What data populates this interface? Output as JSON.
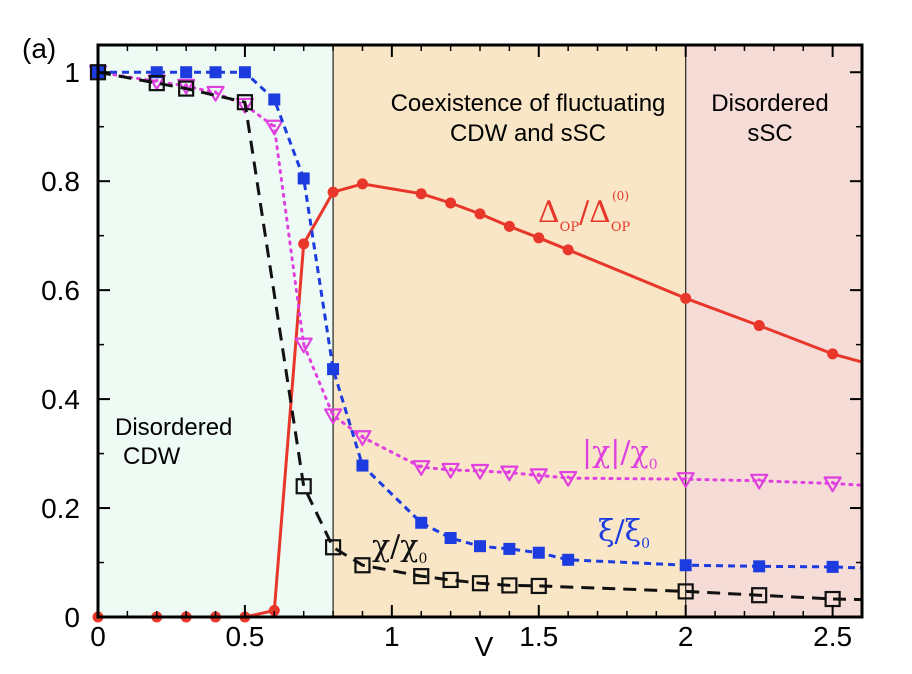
{
  "chart_data": {
    "type": "line",
    "panel_label": "(a)",
    "xlabel": "V",
    "ylabel": "",
    "xlim": [
      0,
      2.6
    ],
    "ylim": [
      0,
      1.05
    ],
    "x_ticks": [
      0,
      0.5,
      1,
      1.5,
      2,
      2.5
    ],
    "x_tick_labels": [
      "0",
      "0.5",
      "1",
      "1.5",
      "2",
      "2.5"
    ],
    "y_ticks": [
      0,
      0.2,
      0.4,
      0.6,
      0.8,
      1
    ],
    "y_tick_labels": [
      "0",
      "0.2",
      "0.4",
      "0.6",
      "0.8",
      "1"
    ],
    "regions": [
      {
        "x0": 0,
        "x1": 0.8,
        "color": "#eefaf4",
        "label_lines": [
          "Disordered",
          "CDW"
        ]
      },
      {
        "x0": 0.8,
        "x1": 2.0,
        "color": "#f8e6c6",
        "label_lines": [
          "Coexistence of fluctuating",
          "CDW and sSC"
        ]
      },
      {
        "x0": 2.0,
        "x1": 2.6,
        "color": "#f6dcd6",
        "label_lines": [
          "Disordered",
          "sSC"
        ]
      }
    ],
    "series": [
      {
        "key": "delta",
        "label_main": "Δ",
        "label_sub1": "OP",
        "label_slash": "/Δ",
        "label_sub2": "OP",
        "label_sup2": "(0)",
        "color": "#e8372a",
        "marker": "circle",
        "line_style": "solid",
        "x": [
          0,
          0.2,
          0.3,
          0.4,
          0.5,
          0.6,
          0.7,
          0.8,
          0.9,
          1.1,
          1.2,
          1.3,
          1.4,
          1.5,
          1.6,
          2.0,
          2.25,
          2.5,
          2.6
        ],
        "y": [
          0,
          0,
          0,
          0,
          0,
          0.012,
          0.685,
          0.78,
          0.795,
          0.777,
          0.76,
          0.74,
          0.717,
          0.696,
          0.674,
          0.585,
          0.535,
          0.483,
          0.468
        ]
      },
      {
        "key": "chi_abs",
        "label_main": "|χ|/χ",
        "label_sub1": "0",
        "color": "#e040e0",
        "marker": "triangle-down-open",
        "line_style": "dotted",
        "x": [
          0,
          0.2,
          0.3,
          0.4,
          0.5,
          0.6,
          0.7,
          0.8,
          0.9,
          1.1,
          1.2,
          1.3,
          1.4,
          1.5,
          1.6,
          2.0,
          2.25,
          2.5,
          2.6
        ],
        "y": [
          1.0,
          0.983,
          0.975,
          0.962,
          0.94,
          0.9,
          0.5,
          0.37,
          0.33,
          0.275,
          0.27,
          0.268,
          0.265,
          0.26,
          0.255,
          0.253,
          0.25,
          0.245,
          0.242
        ]
      },
      {
        "key": "xi",
        "label_main": "ξ/ξ",
        "label_sub1": "0",
        "color": "#1c3ce0",
        "marker": "square",
        "line_style": "dashed",
        "x": [
          0,
          0.2,
          0.3,
          0.4,
          0.5,
          0.6,
          0.7,
          0.8,
          0.9,
          1.1,
          1.2,
          1.3,
          1.4,
          1.5,
          1.6,
          2.0,
          2.25,
          2.5,
          2.6
        ],
        "y": [
          1.0,
          1.0,
          1.0,
          1.0,
          1.0,
          0.95,
          0.805,
          0.455,
          0.278,
          0.173,
          0.145,
          0.13,
          0.125,
          0.118,
          0.105,
          0.095,
          0.093,
          0.092,
          0.09
        ]
      },
      {
        "key": "chi",
        "label_main": "χ/χ",
        "label_sub1": "0",
        "color": "#111111",
        "marker": "square-open",
        "line_style": "long-dashed",
        "x": [
          0,
          0.2,
          0.3,
          0.5,
          0.7,
          0.8,
          0.9,
          1.1,
          1.2,
          1.3,
          1.4,
          1.5,
          2.0,
          2.25,
          2.5,
          2.6
        ],
        "y": [
          1.0,
          0.98,
          0.97,
          0.945,
          0.24,
          0.128,
          0.095,
          0.075,
          0.068,
          0.062,
          0.058,
          0.057,
          0.047,
          0.04,
          0.033,
          0.032
        ]
      }
    ]
  }
}
